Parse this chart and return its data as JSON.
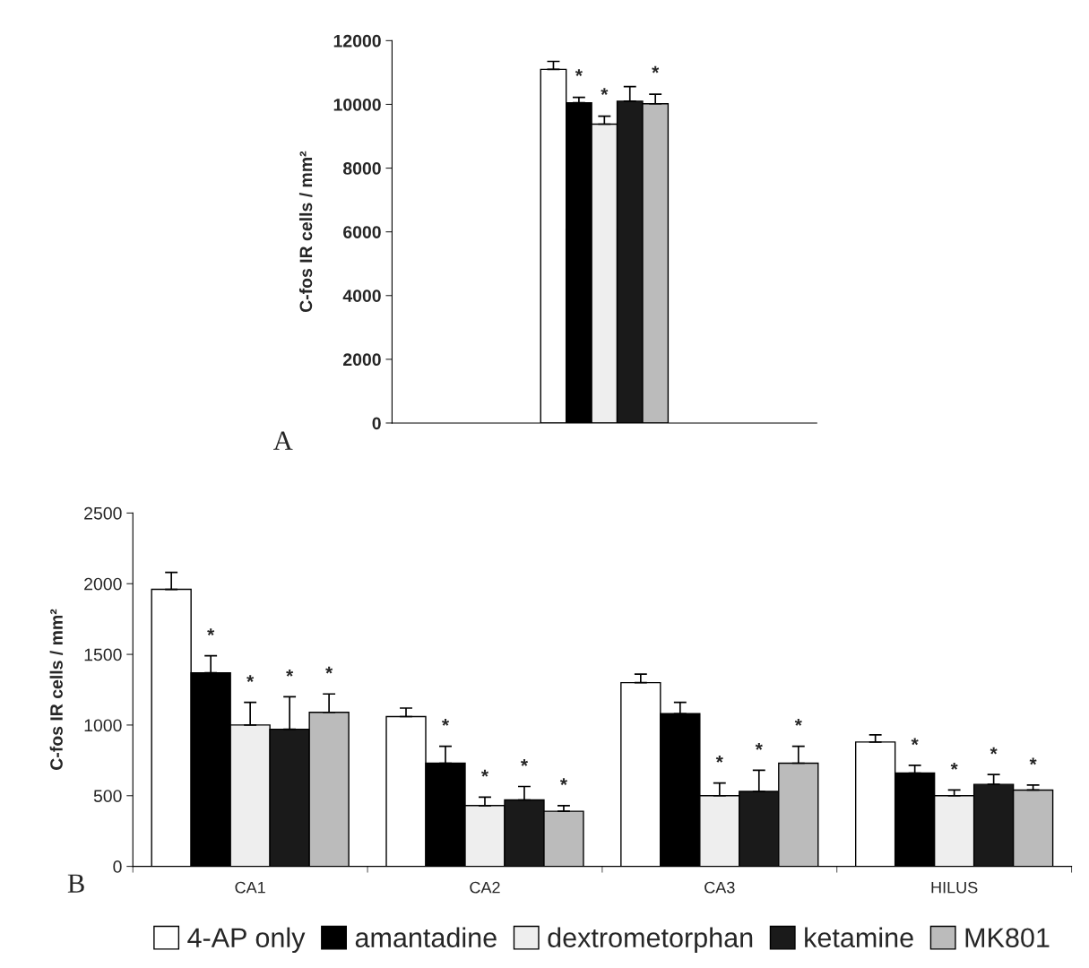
{
  "chart_data": [
    {
      "type": "bar",
      "ylabel": "C-fos IR cells / mm²",
      "categories": [
        null
      ],
      "ylim": [
        0,
        12000
      ],
      "yticks": [
        0,
        2000,
        4000,
        6000,
        8000,
        10000,
        12000
      ],
      "grid": false,
      "legend": false,
      "annotations": [
        "A"
      ],
      "series": [
        {
          "color": "#ffffff",
          "values": [
            11100
          ],
          "errors": [
            [
              11100,
              11350
            ]
          ]
        },
        {
          "color": "#000000",
          "values": [
            10050
          ],
          "errors": [
            [
              10050,
              10220
            ]
          ],
          "value_labels": [
            "*"
          ]
        },
        {
          "color": "#eeeeee",
          "values": [
            9380
          ],
          "errors": [
            [
              9380,
              9630
            ]
          ],
          "value_labels": [
            "*"
          ]
        },
        {
          "color": "#1a1a1a",
          "values": [
            10100
          ],
          "errors": [
            [
              10100,
              10560
            ]
          ]
        },
        {
          "color": "#bbbbbb",
          "values": [
            10020
          ],
          "errors": [
            [
              10020,
              10320
            ]
          ],
          "value_labels": [
            "*"
          ]
        }
      ]
    },
    {
      "type": "bar",
      "ylabel": "C-fos IR cells / mm²",
      "categories": [
        "CA1",
        "CA2",
        "CA3",
        "HILUS"
      ],
      "ylim": [
        0,
        2500
      ],
      "yticks": [
        0,
        500,
        1000,
        1500,
        2000,
        2500
      ],
      "grid": false,
      "legend": "bottom",
      "annotations": [
        "B"
      ],
      "series": [
        {
          "name": "4-AP only",
          "color": "#ffffff",
          "values": [
            1960,
            1060,
            1300,
            880
          ],
          "errors": [
            [
              1960,
              2080
            ],
            [
              1060,
              1120
            ],
            [
              1300,
              1360
            ],
            [
              880,
              930
            ]
          ]
        },
        {
          "name": "amantadine",
          "color": "#000000",
          "values": [
            1370,
            730,
            1080,
            660
          ],
          "errors": [
            [
              1370,
              1490
            ],
            [
              730,
              850
            ],
            [
              1080,
              1160
            ],
            [
              660,
              715
            ]
          ],
          "value_labels": [
            "*",
            "*",
            null,
            "*"
          ]
        },
        {
          "name": "dextrometorphan",
          "color": "#eeeeee",
          "values": [
            1000,
            430,
            500,
            500
          ],
          "errors": [
            [
              1000,
              1160
            ],
            [
              430,
              490
            ],
            [
              500,
              590
            ],
            [
              500,
              540
            ]
          ],
          "value_labels": [
            "*",
            "*",
            "*",
            "*"
          ]
        },
        {
          "name": "ketamine",
          "color": "#1a1a1a",
          "values": [
            970,
            470,
            530,
            580
          ],
          "errors": [
            [
              970,
              1200
            ],
            [
              470,
              565
            ],
            [
              530,
              680
            ],
            [
              580,
              650
            ]
          ],
          "value_labels": [
            "*",
            "*",
            "*",
            "*"
          ]
        },
        {
          "name": "MK801",
          "color": "#bbbbbb",
          "values": [
            1090,
            390,
            730,
            540
          ],
          "errors": [
            [
              1090,
              1220
            ],
            [
              390,
              430
            ],
            [
              730,
              850
            ],
            [
              540,
              575
            ]
          ],
          "value_labels": [
            "*",
            "*",
            "*",
            "*"
          ]
        }
      ]
    }
  ]
}
